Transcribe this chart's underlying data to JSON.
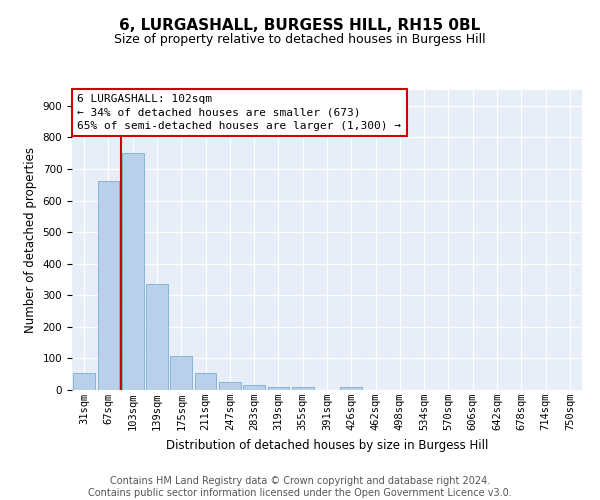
{
  "title": "6, LURGASHALL, BURGESS HILL, RH15 0BL",
  "subtitle": "Size of property relative to detached houses in Burgess Hill",
  "xlabel": "Distribution of detached houses by size in Burgess Hill",
  "ylabel": "Number of detached properties",
  "bar_values": [
    55,
    663,
    750,
    337,
    108,
    53,
    25,
    15,
    10,
    10,
    0,
    10,
    0,
    0,
    0,
    0,
    0,
    0,
    0,
    0,
    0
  ],
  "bar_labels": [
    "31sqm",
    "67sqm",
    "103sqm",
    "139sqm",
    "175sqm",
    "211sqm",
    "247sqm",
    "283sqm",
    "319sqm",
    "355sqm",
    "391sqm",
    "426sqm",
    "462sqm",
    "498sqm",
    "534sqm",
    "570sqm",
    "606sqm",
    "642sqm",
    "678sqm",
    "714sqm",
    "750sqm"
  ],
  "bar_color": "#b8d0ea",
  "bar_edge_color": "#7aadd4",
  "bar_edge_width": 0.6,
  "vline_x_index": 2,
  "vline_color": "#cc0000",
  "annotation_text": "6 LURGASHALL: 102sqm\n← 34% of detached houses are smaller (673)\n65% of semi-detached houses are larger (1,300) →",
  "annotation_box_color": "#ffffff",
  "annotation_border_color": "#cc0000",
  "ylim": [
    0,
    950
  ],
  "yticks": [
    0,
    100,
    200,
    300,
    400,
    500,
    600,
    700,
    800,
    900
  ],
  "bg_color": "#e8eef7",
  "footer_line1": "Contains HM Land Registry data © Crown copyright and database right 2024.",
  "footer_line2": "Contains public sector information licensed under the Open Government Licence v3.0.",
  "title_fontsize": 11,
  "subtitle_fontsize": 9,
  "xlabel_fontsize": 8.5,
  "ylabel_fontsize": 8.5,
  "tick_fontsize": 7.5,
  "annotation_fontsize": 8,
  "footer_fontsize": 7
}
